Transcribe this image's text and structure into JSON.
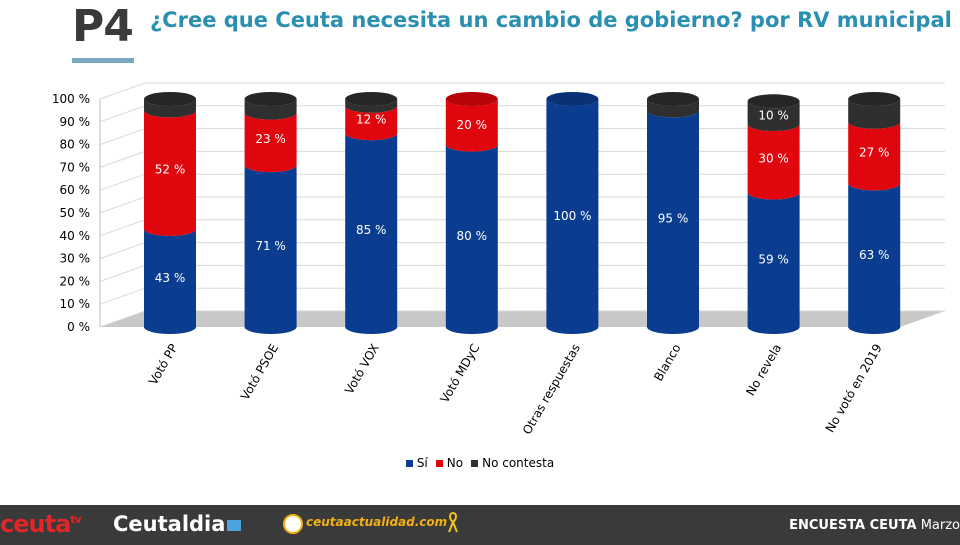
{
  "header": {
    "question_number": "P4",
    "title": "¿Cree que Ceuta necesita un cambio de gobierno? por RV municipal"
  },
  "chart_data": {
    "type": "bar",
    "stacked": true,
    "categories": [
      "Votó PP",
      "Votó PSOE",
      "Votó VOX",
      "Votó MDyC",
      "Otras respuestas",
      "Blanco",
      "No revela",
      "No votó en 2019"
    ],
    "series": [
      {
        "name": "Sí",
        "color": "#0a3d8f",
        "values": [
          43,
          71,
          85,
          80,
          100,
          95,
          59,
          63
        ],
        "labels": [
          "43 %",
          "71 %",
          "85 %",
          "80 %",
          "100 %",
          "95 %",
          "59 %",
          "63 %"
        ]
      },
      {
        "name": "No",
        "color": "#e0060d",
        "values": [
          52,
          23,
          12,
          20,
          0,
          0,
          30,
          27
        ],
        "labels": [
          "52 %",
          "23 %",
          "12 %",
          "20 %",
          "",
          "",
          "30 %",
          "27 %"
        ]
      },
      {
        "name": "No contesta",
        "color": "#2f2f2f",
        "values": [
          5,
          6,
          3,
          0,
          0,
          5,
          10,
          10
        ],
        "labels": [
          "",
          "",
          "",
          "",
          "",
          "",
          "10 %",
          ""
        ]
      }
    ],
    "y_ticks": [
      "0 %",
      "10 %",
      "20 %",
      "30 %",
      "40 %",
      "50 %",
      "60 %",
      "70 %",
      "80 %",
      "90 %",
      "100 %"
    ],
    "ylim": [
      0,
      100
    ],
    "grid": true,
    "legend_position": "bottom"
  },
  "footer": {
    "brand_ceutatv": "ceuta",
    "brand_ceutatv_sup": "tv",
    "brand_ceutaldia": "Ceutaldia",
    "brand_actualidad": "ceutaactualidad.com",
    "survey_label": "ENCUESTA CEUTA",
    "survey_month": "Marzo"
  },
  "colors": {
    "title": "#2a8fb1",
    "accent_line": "#7aa7bd",
    "footer_bg": "#3a3a3a"
  }
}
